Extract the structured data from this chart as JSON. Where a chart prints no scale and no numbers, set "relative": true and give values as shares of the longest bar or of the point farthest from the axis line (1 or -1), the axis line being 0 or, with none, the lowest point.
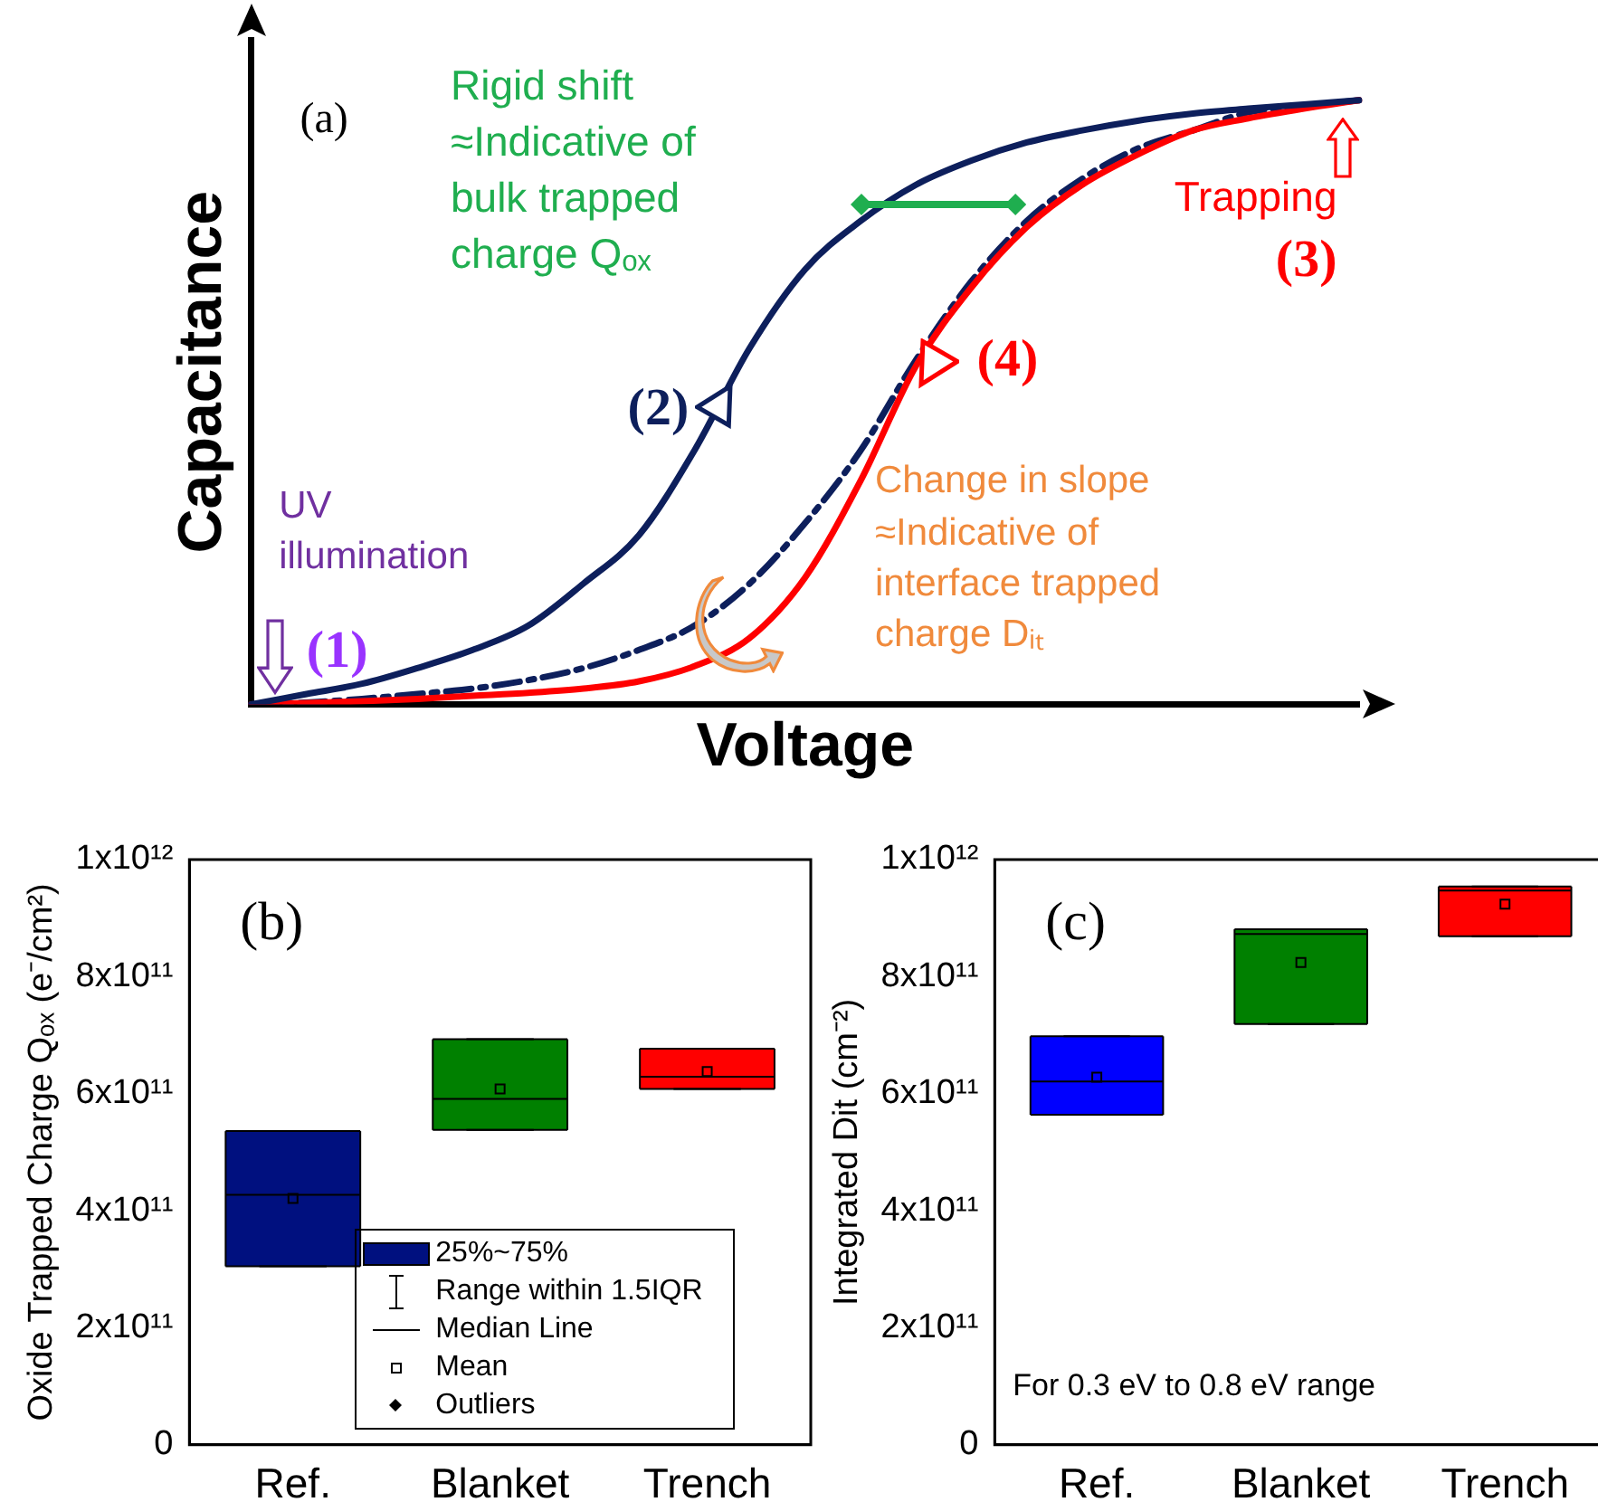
{
  "chart_data": [
    {
      "type": "line",
      "relative": true,
      "xlabel": "Voltage",
      "ylabel": "Capacitance",
      "marker": "none",
      "categories": [
        null,
        null,
        null,
        null,
        null,
        null,
        null,
        null,
        null,
        null,
        null,
        null,
        null,
        null,
        null,
        null,
        null,
        null,
        null,
        null,
        null
      ],
      "series": [
        {
          "color": "#0d1f5c",
          "line_style": "solid",
          "values": [
            0,
            0.017,
            0.034,
            0.06,
            0.09,
            0.13,
            0.2,
            0.28,
            0.42,
            0.59,
            0.72,
            0.8,
            0.86,
            0.9,
            0.93,
            0.95,
            0.966,
            0.978,
            0.986,
            0.993,
            1
          ]
        },
        {
          "color": "#ff0000",
          "line_style": "solid",
          "values": [
            0,
            0.002,
            0.005,
            0.009,
            0.014,
            0.019,
            0.026,
            0.038,
            0.063,
            0.11,
            0.21,
            0.37,
            0.56,
            0.69,
            0.79,
            0.86,
            0.91,
            0.95,
            0.97,
            0.986,
            1
          ]
        },
        {
          "color": "#0d1f5c",
          "line_style": "dashed",
          "values": [
            0,
            0.003,
            0.009,
            0.017,
            0.026,
            0.04,
            0.06,
            0.09,
            0.13,
            0.2,
            0.3,
            0.42,
            0.57,
            0.7,
            0.8,
            0.87,
            0.92,
            0.95,
            0.98,
            0.99,
            1
          ]
        }
      ],
      "annotations": [
        "(a)",
        "Rigid shift ≈Indicative of bulk trapped charge Qₒₓ",
        "Trapping",
        "(3)",
        "(4)",
        "(2)",
        "UV illumination",
        "(1)",
        "Change in slope ≈Indicative of interface trapped charge Dᵢₜ"
      ]
    },
    {
      "type": "box",
      "ylabel": "Oxide Trapped Charge Qₒₓ (e⁻/cm²)",
      "categories": [
        "Ref.",
        "Blanket",
        "Trench"
      ],
      "colors": [
        "#00107f",
        "#008000",
        "#ff0000"
      ],
      "boxes": [
        {
          "low": 305000000000,
          "q1": 305000000000,
          "median": 427000000000,
          "q3": 536000000000,
          "high": 536000000000,
          "mean": 421000000000
        },
        {
          "low": 538000000000,
          "q1": 538000000000,
          "median": 591000000000,
          "q3": 693000000000,
          "high": 693000000000,
          "mean": 608000000000
        },
        {
          "low": 608000000000,
          "q1": 608000000000,
          "median": 629000000000,
          "q3": 677000000000,
          "high": 677000000000,
          "mean": 638000000000
        }
      ],
      "ylim": [
        0,
        1000000000000
      ],
      "yticks": [
        0,
        {
          "value": 200000000000,
          "label": "2x10¹¹"
        },
        {
          "value": 400000000000,
          "label": "4x10¹¹"
        },
        {
          "value": 600000000000,
          "label": "6x10¹¹"
        },
        {
          "value": 800000000000,
          "label": "8x10¹¹"
        },
        {
          "value": 1000000000000,
          "label": "1x10¹²"
        }
      ],
      "annotations": [
        "(b)",
        "25%~75%",
        "Range within 1.5IQR",
        "Median Line",
        "Mean",
        "Outliers"
      ]
    },
    {
      "type": "box",
      "ylabel": "Integrated Dit (cm⁻²)",
      "categories": [
        "Ref.",
        "Blanket",
        "Trench"
      ],
      "colors": [
        "#0000ff",
        "#008000",
        "#ff0000"
      ],
      "boxes": [
        {
          "low": 564000000000,
          "q1": 564000000000,
          "median": 621000000000,
          "q3": 698000000000,
          "high": 698000000000,
          "mean": 628000000000
        },
        {
          "low": 719000000000,
          "q1": 719000000000,
          "median": 873000000000,
          "q3": 881000000000,
          "high": 881000000000,
          "mean": 824000000000
        },
        {
          "low": 869000000000,
          "q1": 869000000000,
          "median": 947000000000,
          "q3": 954000000000,
          "high": 954000000000,
          "mean": 924000000000
        }
      ],
      "ylim": [
        0,
        1000000000000
      ],
      "yticks": [
        0,
        {
          "value": 200000000000,
          "label": "2x10¹¹"
        },
        {
          "value": 400000000000,
          "label": "4x10¹¹"
        },
        {
          "value": 600000000000,
          "label": "6x10¹¹"
        },
        {
          "value": 800000000000,
          "label": "8x10¹¹"
        },
        {
          "value": 1000000000000,
          "label": "1x10¹²"
        }
      ],
      "annotations": [
        "(c)",
        "For 0.3 eV to 0.8 eV range"
      ]
    }
  ]
}
